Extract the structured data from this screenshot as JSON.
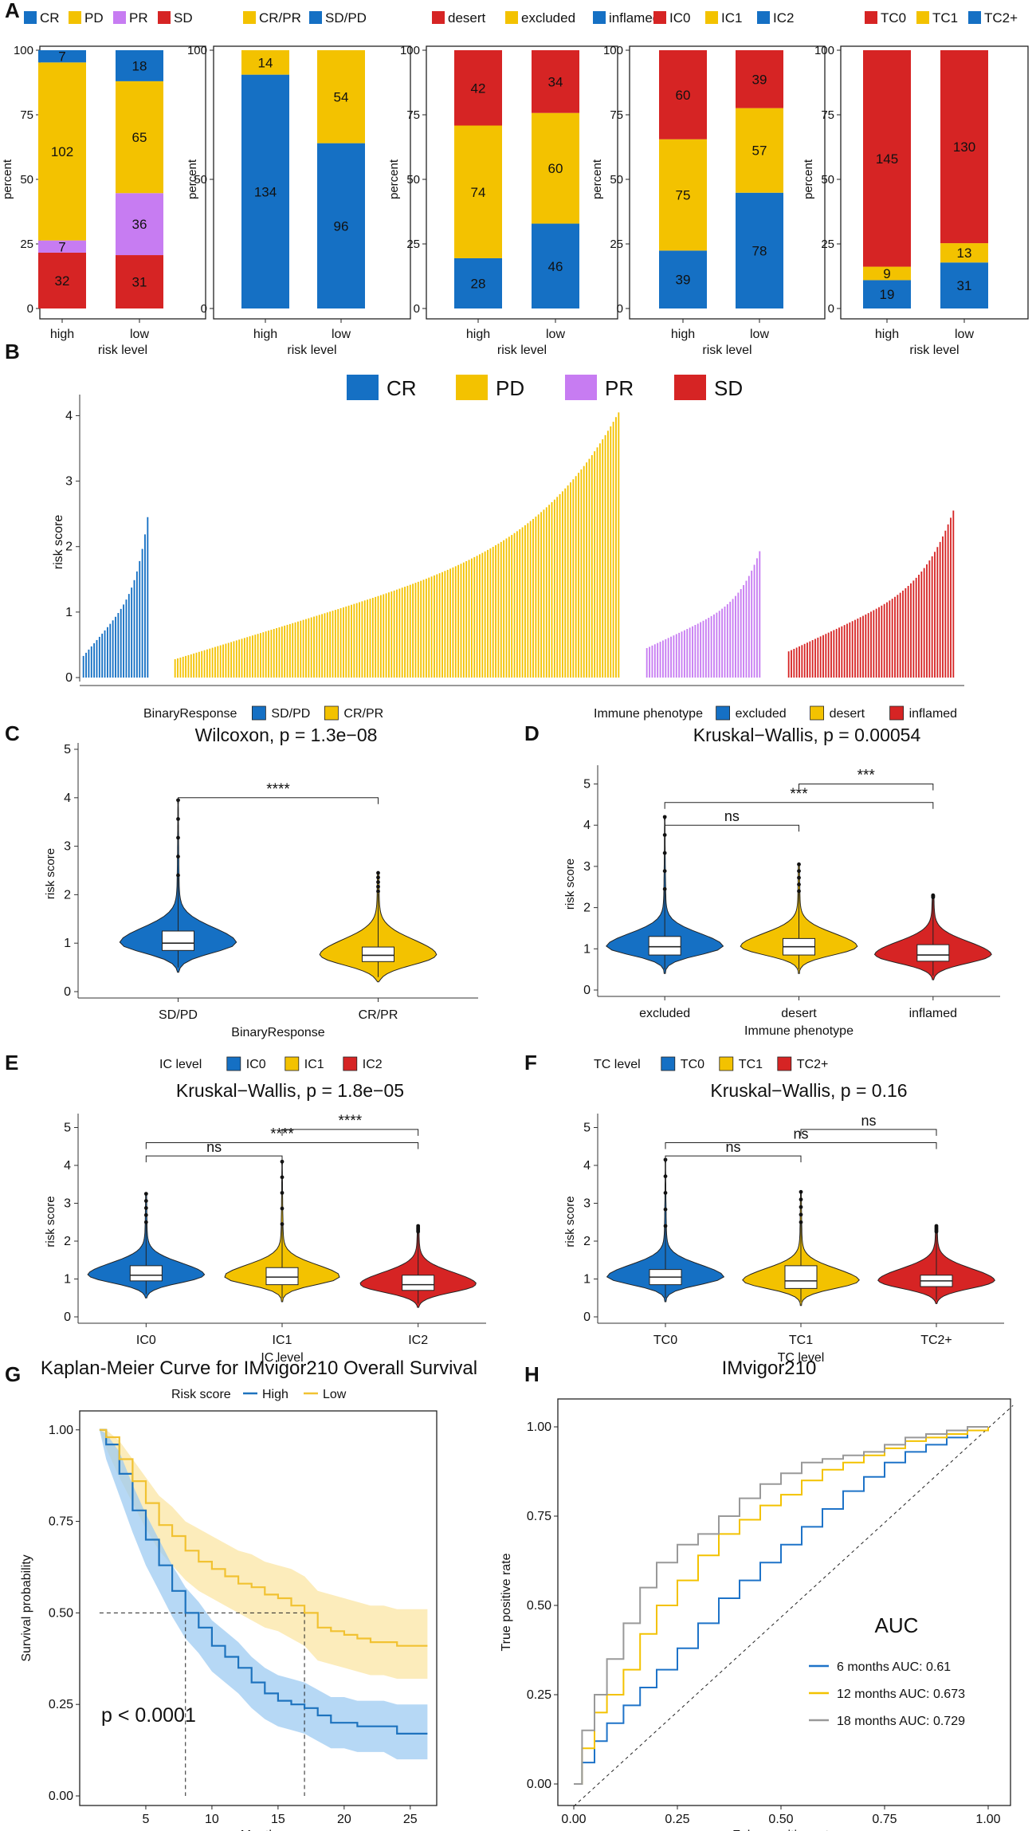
{
  "colors": {
    "blue": "#1570c4",
    "yellow": "#f3c200",
    "purple": "#c77cf2",
    "red": "#d62424",
    "km_blue": "#1e73be",
    "km_blue_band": "#9ecbf2",
    "km_yellow": "#f1c232",
    "km_yellow_band": "#fbe6a4",
    "roc_6": "#1e73c8",
    "roc_12": "#f3c200",
    "roc_18": "#999999"
  },
  "panels": {
    "A": {
      "letter": "A"
    },
    "B": {
      "letter": "B"
    },
    "C": {
      "letter": "C"
    },
    "D": {
      "letter": "D"
    },
    "E": {
      "letter": "E"
    },
    "F": {
      "letter": "F"
    },
    "G": {
      "letter": "G"
    },
    "H": {
      "letter": "H"
    }
  },
  "chart_data": [
    {
      "id": "A1",
      "type": "bar",
      "stacked": true,
      "legend": [
        "CR",
        "PD",
        "PR",
        "SD"
      ],
      "legend_colors": [
        "#1570c4",
        "#f3c200",
        "#c77cf2",
        "#d62424"
      ],
      "categories": [
        "high",
        "low"
      ],
      "series_bottom_to_top": [
        {
          "name": "SD",
          "color": "#d62424",
          "values": [
            32,
            31
          ]
        },
        {
          "name": "PR",
          "color": "#c77cf2",
          "values": [
            7,
            36
          ]
        },
        {
          "name": "PD",
          "color": "#f3c200",
          "values": [
            102,
            65
          ]
        },
        {
          "name": "CR",
          "color": "#1570c4",
          "values": [
            7,
            18
          ]
        }
      ],
      "xlabel": "risk level",
      "ylabel": "percent",
      "yticks": [
        "0",
        "25",
        "50",
        "75",
        "100"
      ],
      "ylim": [
        0,
        100
      ]
    },
    {
      "id": "A2",
      "type": "bar",
      "stacked": true,
      "legend": [
        "CR/PR",
        "SD/PD"
      ],
      "legend_colors": [
        "#f3c200",
        "#1570c4"
      ],
      "categories": [
        "high",
        "low"
      ],
      "series_bottom_to_top": [
        {
          "name": "SD/PD",
          "color": "#1570c4",
          "values": [
            134,
            96
          ]
        },
        {
          "name": "CR/PR",
          "color": "#f3c200",
          "values": [
            14,
            54
          ]
        }
      ],
      "xlabel": "risk level",
      "ylabel": "percent",
      "yticks": [
        "0",
        "50",
        "100"
      ],
      "ylim": [
        0,
        100
      ]
    },
    {
      "id": "A3",
      "type": "bar",
      "stacked": true,
      "legend": [
        "desert",
        "excluded",
        "inflamed"
      ],
      "legend_colors": [
        "#d62424",
        "#f3c200",
        "#1570c4"
      ],
      "categories": [
        "high",
        "low"
      ],
      "series_bottom_to_top": [
        {
          "name": "inflamed",
          "color": "#1570c4",
          "values": [
            28,
            46
          ]
        },
        {
          "name": "excluded",
          "color": "#f3c200",
          "values": [
            74,
            60
          ]
        },
        {
          "name": "desert",
          "color": "#d62424",
          "values": [
            42,
            34
          ]
        }
      ],
      "xlabel": "risk level",
      "ylabel": "percent",
      "yticks": [
        "0",
        "25",
        "50",
        "75",
        "100"
      ],
      "ylim": [
        0,
        100
      ]
    },
    {
      "id": "A4",
      "type": "bar",
      "stacked": true,
      "legend": [
        "IC0",
        "IC1",
        "IC2"
      ],
      "legend_colors": [
        "#d62424",
        "#f3c200",
        "#1570c4"
      ],
      "categories": [
        "high",
        "low"
      ],
      "series_bottom_to_top": [
        {
          "name": "IC2",
          "color": "#1570c4",
          "values": [
            39,
            78
          ]
        },
        {
          "name": "IC1",
          "color": "#f3c200",
          "values": [
            75,
            57
          ]
        },
        {
          "name": "IC0",
          "color": "#d62424",
          "values": [
            60,
            39
          ]
        }
      ],
      "xlabel": "risk level",
      "ylabel": "percent",
      "yticks": [
        "0",
        "25",
        "50",
        "75",
        "100"
      ],
      "ylim": [
        0,
        100
      ]
    },
    {
      "id": "A5",
      "type": "bar",
      "stacked": true,
      "legend": [
        "TC0",
        "TC1",
        "TC2+"
      ],
      "legend_colors": [
        "#d62424",
        "#f3c200",
        "#1570c4"
      ],
      "categories": [
        "high",
        "low"
      ],
      "series_bottom_to_top": [
        {
          "name": "TC2+",
          "color": "#1570c4",
          "values": [
            19,
            31
          ]
        },
        {
          "name": "TC1",
          "color": "#f3c200",
          "values": [
            9,
            13
          ]
        },
        {
          "name": "TC0",
          "color": "#d62424",
          "values": [
            145,
            130
          ]
        }
      ],
      "xlabel": "risk level",
      "ylabel": "percent",
      "yticks": [
        "0",
        "25",
        "50",
        "75",
        "100"
      ],
      "ylim": [
        0,
        100
      ]
    },
    {
      "id": "B",
      "type": "bar",
      "sorted_waterfall": true,
      "legend": [
        "CR",
        "PD",
        "PR",
        "SD"
      ],
      "legend_colors": [
        "#1570c4",
        "#f3c200",
        "#c77cf2",
        "#d62424"
      ],
      "ylabel": "risk  score",
      "yticks": [
        "0",
        "1",
        "2",
        "3",
        "4"
      ],
      "ylim": [
        0,
        4.2
      ],
      "groups": [
        {
          "name": "CR",
          "n": 25,
          "min": 0.33,
          "max": 2.45
        },
        {
          "name": "PD",
          "n": 167,
          "min": 0.28,
          "max": 4.05
        },
        {
          "name": "PR",
          "n": 43,
          "min": 0.45,
          "max": 1.93
        },
        {
          "name": "SD",
          "n": 63,
          "min": 0.4,
          "max": 2.55
        }
      ]
    },
    {
      "id": "C",
      "type": "violin",
      "legend_title": "BinaryResponse",
      "legend": [
        "SD/PD",
        "CR/PR"
      ],
      "legend_colors": [
        "#1570c4",
        "#f3c200"
      ],
      "title": "Wilcoxon, p = 1.3e−08",
      "categories": [
        "SD/PD",
        "CR/PR"
      ],
      "medians": [
        1.0,
        0.75
      ],
      "q1": [
        0.85,
        0.62
      ],
      "q3": [
        1.25,
        0.92
      ],
      "max": [
        3.95,
        2.45
      ],
      "xlabel": "BinaryResponse",
      "ylabel": "risk score",
      "yticks": [
        "0",
        "1",
        "2",
        "3",
        "4",
        "5"
      ],
      "ylim": [
        0,
        5
      ],
      "comparisons": [
        {
          "from": "SD/PD",
          "to": "CR/PR",
          "label": "****"
        }
      ]
    },
    {
      "id": "D",
      "type": "violin",
      "legend_title": "Immune phenotype",
      "legend": [
        "excluded",
        "desert",
        "inflamed"
      ],
      "legend_colors": [
        "#1570c4",
        "#f3c200",
        "#d62424"
      ],
      "title": "Kruskal−Wallis, p = 0.00054",
      "categories": [
        "excluded",
        "desert",
        "inflamed"
      ],
      "medians": [
        1.05,
        1.05,
        0.85
      ],
      "q1": [
        0.85,
        0.85,
        0.7
      ],
      "q3": [
        1.3,
        1.25,
        1.1
      ],
      "max": [
        4.2,
        3.05,
        2.3
      ],
      "xlabel": "Immune phenotype",
      "ylabel": "risk score",
      "yticks": [
        "0",
        "1",
        "2",
        "3",
        "4",
        "5"
      ],
      "ylim": [
        0,
        5.3
      ],
      "comparisons": [
        {
          "from": "excluded",
          "to": "desert",
          "label": "ns"
        },
        {
          "from": "excluded",
          "to": "inflamed",
          "label": "***"
        },
        {
          "from": "desert",
          "to": "inflamed",
          "label": "***"
        }
      ]
    },
    {
      "id": "E",
      "type": "violin",
      "legend_title": "IC level",
      "legend": [
        "IC0",
        "IC1",
        "IC2"
      ],
      "legend_colors": [
        "#1570c4",
        "#f3c200",
        "#d62424"
      ],
      "title": "Kruskal−Wallis, p = 1.8e−05",
      "categories": [
        "IC0",
        "IC1",
        "IC2"
      ],
      "medians": [
        1.1,
        1.05,
        0.85
      ],
      "q1": [
        0.95,
        0.85,
        0.7
      ],
      "q3": [
        1.35,
        1.3,
        1.1
      ],
      "max": [
        3.25,
        4.1,
        2.4
      ],
      "xlabel": "IC level",
      "ylabel": "risk score",
      "yticks": [
        "0",
        "1",
        "2",
        "3",
        "4",
        "5"
      ],
      "ylim": [
        0,
        5.2
      ],
      "comparisons": [
        {
          "from": "IC0",
          "to": "IC1",
          "label": "ns"
        },
        {
          "from": "IC0",
          "to": "IC2",
          "label": "****"
        },
        {
          "from": "IC1",
          "to": "IC2",
          "label": "****"
        }
      ]
    },
    {
      "id": "F",
      "type": "violin",
      "legend_title": "TC level",
      "legend": [
        "TC0",
        "TC1",
        "TC2+"
      ],
      "legend_colors": [
        "#1570c4",
        "#f3c200",
        "#d62424"
      ],
      "title": "Kruskal−Wallis, p = 0.16",
      "categories": [
        "TC0",
        "TC1",
        "TC2+"
      ],
      "medians": [
        1.05,
        0.95,
        0.95
      ],
      "q1": [
        0.85,
        0.75,
        0.8
      ],
      "q3": [
        1.25,
        1.35,
        1.1
      ],
      "max": [
        4.15,
        3.3,
        2.4
      ],
      "xlabel": "TC level",
      "ylabel": "risk score",
      "yticks": [
        "0",
        "1",
        "2",
        "3",
        "4",
        "5"
      ],
      "ylim": [
        0,
        5.2
      ],
      "comparisons": [
        {
          "from": "TC0",
          "to": "TC1",
          "label": "ns"
        },
        {
          "from": "TC0",
          "to": "TC2+",
          "label": "ns"
        },
        {
          "from": "TC1",
          "to": "TC2+",
          "label": "ns"
        }
      ]
    },
    {
      "id": "G",
      "type": "line",
      "title": "Kaplan-Meier Curve for IMvigor210 Overall Survival",
      "legend_title": "Risk score",
      "legend": [
        "High",
        "Low"
      ],
      "legend_colors": [
        "#1e73be",
        "#f1c232"
      ],
      "xlabel": "Month",
      "ylabel": "Survival probability",
      "xticks": [
        "5",
        "10",
        "15",
        "20",
        "25"
      ],
      "yticks": [
        "0.00",
        "0.25",
        "0.50",
        "0.75",
        "1.00"
      ],
      "xlim": [
        0,
        27
      ],
      "ylim": [
        0,
        1.03
      ],
      "pvalue": "p < 0.0001",
      "median_survival": {
        "High": 8.0,
        "Low": 17.0
      },
      "series": [
        {
          "name": "High",
          "x": [
            1.5,
            2,
            3,
            4,
            5,
            6,
            7,
            8,
            9,
            10,
            11,
            12,
            13,
            14,
            15,
            16,
            17,
            18,
            19,
            20,
            21,
            22,
            23,
            24,
            25,
            26.3
          ],
          "y": [
            1.0,
            0.96,
            0.88,
            0.78,
            0.7,
            0.63,
            0.56,
            0.5,
            0.46,
            0.41,
            0.38,
            0.35,
            0.31,
            0.28,
            0.26,
            0.25,
            0.24,
            0.22,
            0.2,
            0.2,
            0.19,
            0.19,
            0.19,
            0.17,
            0.17,
            0.17
          ],
          "lo": [
            1.0,
            0.92,
            0.82,
            0.72,
            0.63,
            0.56,
            0.49,
            0.43,
            0.39,
            0.34,
            0.31,
            0.28,
            0.24,
            0.21,
            0.19,
            0.18,
            0.17,
            0.15,
            0.13,
            0.13,
            0.12,
            0.12,
            0.12,
            0.1,
            0.1,
            0.1
          ],
          "hi": [
            1.0,
            0.99,
            0.94,
            0.85,
            0.77,
            0.7,
            0.63,
            0.57,
            0.53,
            0.48,
            0.45,
            0.42,
            0.38,
            0.35,
            0.33,
            0.32,
            0.31,
            0.29,
            0.27,
            0.27,
            0.26,
            0.26,
            0.26,
            0.25,
            0.25,
            0.25
          ]
        },
        {
          "name": "Low",
          "x": [
            1.5,
            2,
            3,
            4,
            5,
            6,
            7,
            8,
            9,
            10,
            11,
            12,
            13,
            14,
            15,
            16,
            17,
            18,
            19,
            20,
            21,
            22,
            23,
            24,
            25,
            26.3
          ],
          "y": [
            1.0,
            0.98,
            0.92,
            0.86,
            0.8,
            0.74,
            0.71,
            0.67,
            0.64,
            0.62,
            0.6,
            0.58,
            0.57,
            0.55,
            0.54,
            0.52,
            0.5,
            0.46,
            0.45,
            0.44,
            0.43,
            0.42,
            0.42,
            0.41,
            0.41,
            0.41
          ],
          "lo": [
            1.0,
            0.95,
            0.87,
            0.8,
            0.73,
            0.67,
            0.63,
            0.59,
            0.56,
            0.54,
            0.52,
            0.5,
            0.48,
            0.46,
            0.45,
            0.43,
            0.41,
            0.37,
            0.36,
            0.35,
            0.34,
            0.33,
            0.33,
            0.32,
            0.32,
            0.32
          ],
          "hi": [
            1.0,
            1.0,
            0.97,
            0.92,
            0.87,
            0.82,
            0.79,
            0.75,
            0.73,
            0.71,
            0.69,
            0.67,
            0.66,
            0.64,
            0.63,
            0.62,
            0.6,
            0.56,
            0.55,
            0.54,
            0.53,
            0.52,
            0.52,
            0.51,
            0.51,
            0.51
          ]
        }
      ]
    },
    {
      "id": "H",
      "type": "line",
      "subtype": "roc",
      "title": "IMvigor210",
      "xlabel": "False positive rate",
      "ylabel": "True positive rate",
      "xticks": [
        "0.00",
        "0.25",
        "0.50",
        "0.75",
        "1.00"
      ],
      "yticks": [
        "0.00",
        "0.25",
        "0.50",
        "0.75",
        "1.00"
      ],
      "xlim": [
        0,
        1
      ],
      "ylim": [
        0,
        1
      ],
      "legend_title": "AUC",
      "legend": [
        "6 months   AUC: 0.61",
        "12 months  AUC: 0.673",
        "18 months  AUC: 0.729"
      ],
      "series": [
        {
          "name": "6 months",
          "color": "#1e73c8",
          "x": [
            0,
            0.02,
            0.05,
            0.08,
            0.12,
            0.16,
            0.2,
            0.25,
            0.3,
            0.35,
            0.4,
            0.45,
            0.5,
            0.55,
            0.6,
            0.65,
            0.7,
            0.75,
            0.8,
            0.85,
            0.9,
            0.95,
            1.0
          ],
          "y": [
            0,
            0.06,
            0.12,
            0.17,
            0.22,
            0.27,
            0.32,
            0.38,
            0.45,
            0.52,
            0.57,
            0.62,
            0.67,
            0.72,
            0.77,
            0.82,
            0.86,
            0.9,
            0.93,
            0.95,
            0.97,
            0.99,
            1.0
          ]
        },
        {
          "name": "12 months",
          "color": "#f3c200",
          "x": [
            0,
            0.02,
            0.05,
            0.08,
            0.12,
            0.16,
            0.2,
            0.25,
            0.3,
            0.35,
            0.4,
            0.45,
            0.5,
            0.55,
            0.6,
            0.65,
            0.7,
            0.75,
            0.8,
            0.85,
            0.9,
            0.95,
            1.0
          ],
          "y": [
            0,
            0.1,
            0.2,
            0.25,
            0.32,
            0.42,
            0.5,
            0.57,
            0.64,
            0.7,
            0.74,
            0.78,
            0.81,
            0.85,
            0.88,
            0.9,
            0.92,
            0.94,
            0.96,
            0.97,
            0.98,
            0.99,
            1.0
          ]
        },
        {
          "name": "18 months",
          "color": "#999999",
          "x": [
            0,
            0.02,
            0.05,
            0.08,
            0.12,
            0.16,
            0.2,
            0.25,
            0.3,
            0.35,
            0.4,
            0.45,
            0.5,
            0.55,
            0.6,
            0.65,
            0.7,
            0.75,
            0.8,
            0.85,
            0.9,
            0.95,
            1.0
          ],
          "y": [
            0,
            0.15,
            0.25,
            0.35,
            0.45,
            0.55,
            0.62,
            0.67,
            0.7,
            0.75,
            0.8,
            0.84,
            0.87,
            0.9,
            0.91,
            0.92,
            0.93,
            0.95,
            0.97,
            0.98,
            0.99,
            1.0,
            1.0
          ]
        }
      ]
    }
  ]
}
